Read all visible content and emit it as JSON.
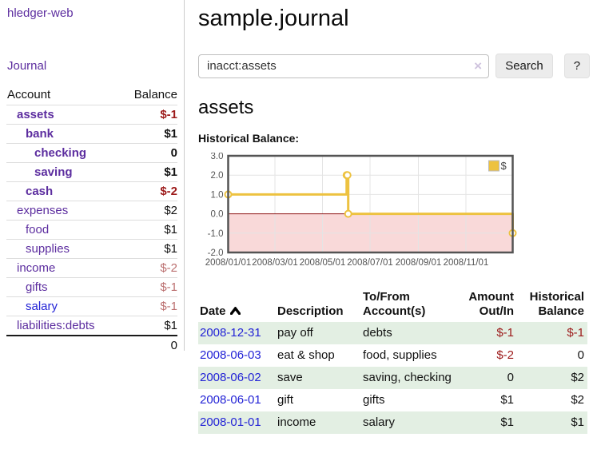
{
  "app_title": "hledger-web",
  "sidebar": {
    "journal_link": "Journal",
    "accounts": {
      "header_account": "Account",
      "header_balance": "Balance",
      "rows": [
        {
          "name": "assets",
          "depth": 1,
          "bold": true,
          "name_color": "purple",
          "balance": "$-1",
          "balance_color": "negStrong"
        },
        {
          "name": "bank",
          "depth": 2,
          "bold": true,
          "name_color": "purple",
          "balance": "$1",
          "balance_color": "black"
        },
        {
          "name": "checking",
          "depth": 3,
          "bold": true,
          "name_color": "purple",
          "balance": "0",
          "balance_color": "black"
        },
        {
          "name": "saving",
          "depth": 3,
          "bold": true,
          "name_color": "purple",
          "balance": "$1",
          "balance_color": "black"
        },
        {
          "name": "cash",
          "depth": 2,
          "bold": true,
          "name_color": "purple",
          "balance": "$-2",
          "balance_color": "negStrong"
        },
        {
          "name": "expenses",
          "depth": 1,
          "bold": false,
          "name_color": "purple",
          "balance": "$2",
          "balance_color": "black"
        },
        {
          "name": "food",
          "depth": 2,
          "bold": false,
          "name_color": "purple",
          "balance": "$1",
          "balance_color": "black"
        },
        {
          "name": "supplies",
          "depth": 2,
          "bold": false,
          "name_color": "purple",
          "balance": "$1",
          "balance_color": "black"
        },
        {
          "name": "income",
          "depth": 1,
          "bold": false,
          "name_color": "purple",
          "balance": "$-2",
          "balance_color": "negSoft"
        },
        {
          "name": "gifts",
          "depth": 2,
          "bold": false,
          "name_color": "purple",
          "balance": "$-1",
          "balance_color": "negSoft"
        },
        {
          "name": "salary",
          "depth": 2,
          "bold": false,
          "name_color": "blue",
          "balance": "$-1",
          "balance_color": "negSoft"
        },
        {
          "name": "liabilities:debts",
          "depth": 1,
          "bold": false,
          "name_color": "purple",
          "balance": "$1",
          "balance_color": "black"
        }
      ],
      "total": "0"
    }
  },
  "main": {
    "page_title": "sample.journal",
    "search": {
      "value": "inacct:assets",
      "clear_icon": "×",
      "search_button": "Search",
      "help_button": "?"
    },
    "account_heading": "assets",
    "section_label": "Historical Balance:"
  },
  "chart_data": {
    "type": "line",
    "style": "step",
    "title": "Historical Balance:",
    "series": [
      {
        "name": "$",
        "color": "#edc240",
        "points": [
          [
            "2008-01-01",
            1
          ],
          [
            "2008-06-01",
            2
          ],
          [
            "2008-06-02",
            2
          ],
          [
            "2008-06-03",
            0
          ],
          [
            "2008-12-31",
            -1
          ]
        ]
      }
    ],
    "x_range": [
      "2008-01-01",
      "2008-12-31"
    ],
    "ylim": [
      -2,
      3
    ],
    "y_ticks": [
      {
        "label": "3.0",
        "value": 3
      },
      {
        "label": "2.0",
        "value": 2
      },
      {
        "label": "1.0",
        "value": 1
      },
      {
        "label": "0.0",
        "value": 0
      },
      {
        "label": "-1.0",
        "value": -1
      },
      {
        "label": "-2.0",
        "value": -2
      }
    ],
    "x_ticks": [
      {
        "label": "2008/01/01",
        "date": "2008-01-01"
      },
      {
        "label": "2008/03/01",
        "date": "2008-03-01"
      },
      {
        "label": "2008/05/01",
        "date": "2008-05-01"
      },
      {
        "label": "2008/07/01",
        "date": "2008-07-01"
      },
      {
        "label": "2008/09/01",
        "date": "2008-09-01"
      },
      {
        "label": "2008/11/01",
        "date": "2008-11-01"
      }
    ],
    "legend": {
      "position": "top-right",
      "label": "$"
    },
    "grid": true,
    "negative_fill": "#f9d9d9",
    "zero_line_color": "#8e1414",
    "border_color": "#545454"
  },
  "register": {
    "headers": {
      "date": "Date",
      "description": "Description",
      "accounts": "To/From Account(s)",
      "amount": "Amount Out/In",
      "balance": "Historical Balance"
    },
    "sort_icon": "chevron-up",
    "rows": [
      {
        "date": "2008-12-31",
        "description": "pay off",
        "accounts": "debts",
        "amount": "$-1",
        "amount_color": "negStrong",
        "balance": "$-1",
        "balance_color": "negStrong"
      },
      {
        "date": "2008-06-03",
        "description": "eat & shop",
        "accounts": "food, supplies",
        "amount": "$-2",
        "amount_color": "negStrong",
        "balance": "0",
        "balance_color": "black"
      },
      {
        "date": "2008-06-02",
        "description": "save",
        "accounts": "saving, checking",
        "amount": "0",
        "amount_color": "black",
        "balance": "$2",
        "balance_color": "black"
      },
      {
        "date": "2008-06-01",
        "description": "gift",
        "accounts": "gifts",
        "amount": "$1",
        "amount_color": "black",
        "balance": "$2",
        "balance_color": "black"
      },
      {
        "date": "2008-01-01",
        "description": "income",
        "accounts": "salary",
        "amount": "$1",
        "amount_color": "black",
        "balance": "$1",
        "balance_color": "black"
      }
    ]
  },
  "colors": {
    "purple": "#5c2d9f",
    "blue": "#2323d6",
    "black": "#111111",
    "negStrong": "#9c1919",
    "negSoft": "#bb6f6f",
    "row_green": "#e3efe3",
    "accent_yellow": "#edc240",
    "grid_line": "#e4e4e4"
  }
}
